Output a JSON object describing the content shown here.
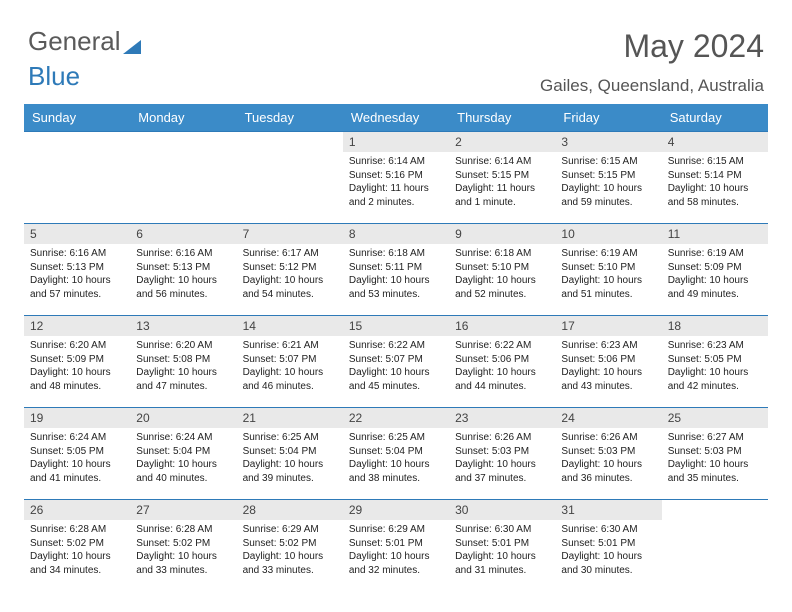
{
  "logo_text1": "General",
  "logo_text2": "Blue",
  "title": "May 2024",
  "location": "Gailes, Queensland, Australia",
  "weekdays": [
    "Sunday",
    "Monday",
    "Tuesday",
    "Wednesday",
    "Thursday",
    "Friday",
    "Saturday"
  ],
  "weeks": [
    [
      {
        "n": "",
        "sr": "",
        "ss": "",
        "dl": ""
      },
      {
        "n": "",
        "sr": "",
        "ss": "",
        "dl": ""
      },
      {
        "n": "",
        "sr": "",
        "ss": "",
        "dl": ""
      },
      {
        "n": "1",
        "sr": "Sunrise: 6:14 AM",
        "ss": "Sunset: 5:16 PM",
        "dl": "Daylight: 11 hours and 2 minutes."
      },
      {
        "n": "2",
        "sr": "Sunrise: 6:14 AM",
        "ss": "Sunset: 5:15 PM",
        "dl": "Daylight: 11 hours and 1 minute."
      },
      {
        "n": "3",
        "sr": "Sunrise: 6:15 AM",
        "ss": "Sunset: 5:15 PM",
        "dl": "Daylight: 10 hours and 59 minutes."
      },
      {
        "n": "4",
        "sr": "Sunrise: 6:15 AM",
        "ss": "Sunset: 5:14 PM",
        "dl": "Daylight: 10 hours and 58 minutes."
      }
    ],
    [
      {
        "n": "5",
        "sr": "Sunrise: 6:16 AM",
        "ss": "Sunset: 5:13 PM",
        "dl": "Daylight: 10 hours and 57 minutes."
      },
      {
        "n": "6",
        "sr": "Sunrise: 6:16 AM",
        "ss": "Sunset: 5:13 PM",
        "dl": "Daylight: 10 hours and 56 minutes."
      },
      {
        "n": "7",
        "sr": "Sunrise: 6:17 AM",
        "ss": "Sunset: 5:12 PM",
        "dl": "Daylight: 10 hours and 54 minutes."
      },
      {
        "n": "8",
        "sr": "Sunrise: 6:18 AM",
        "ss": "Sunset: 5:11 PM",
        "dl": "Daylight: 10 hours and 53 minutes."
      },
      {
        "n": "9",
        "sr": "Sunrise: 6:18 AM",
        "ss": "Sunset: 5:10 PM",
        "dl": "Daylight: 10 hours and 52 minutes."
      },
      {
        "n": "10",
        "sr": "Sunrise: 6:19 AM",
        "ss": "Sunset: 5:10 PM",
        "dl": "Daylight: 10 hours and 51 minutes."
      },
      {
        "n": "11",
        "sr": "Sunrise: 6:19 AM",
        "ss": "Sunset: 5:09 PM",
        "dl": "Daylight: 10 hours and 49 minutes."
      }
    ],
    [
      {
        "n": "12",
        "sr": "Sunrise: 6:20 AM",
        "ss": "Sunset: 5:09 PM",
        "dl": "Daylight: 10 hours and 48 minutes."
      },
      {
        "n": "13",
        "sr": "Sunrise: 6:20 AM",
        "ss": "Sunset: 5:08 PM",
        "dl": "Daylight: 10 hours and 47 minutes."
      },
      {
        "n": "14",
        "sr": "Sunrise: 6:21 AM",
        "ss": "Sunset: 5:07 PM",
        "dl": "Daylight: 10 hours and 46 minutes."
      },
      {
        "n": "15",
        "sr": "Sunrise: 6:22 AM",
        "ss": "Sunset: 5:07 PM",
        "dl": "Daylight: 10 hours and 45 minutes."
      },
      {
        "n": "16",
        "sr": "Sunrise: 6:22 AM",
        "ss": "Sunset: 5:06 PM",
        "dl": "Daylight: 10 hours and 44 minutes."
      },
      {
        "n": "17",
        "sr": "Sunrise: 6:23 AM",
        "ss": "Sunset: 5:06 PM",
        "dl": "Daylight: 10 hours and 43 minutes."
      },
      {
        "n": "18",
        "sr": "Sunrise: 6:23 AM",
        "ss": "Sunset: 5:05 PM",
        "dl": "Daylight: 10 hours and 42 minutes."
      }
    ],
    [
      {
        "n": "19",
        "sr": "Sunrise: 6:24 AM",
        "ss": "Sunset: 5:05 PM",
        "dl": "Daylight: 10 hours and 41 minutes."
      },
      {
        "n": "20",
        "sr": "Sunrise: 6:24 AM",
        "ss": "Sunset: 5:04 PM",
        "dl": "Daylight: 10 hours and 40 minutes."
      },
      {
        "n": "21",
        "sr": "Sunrise: 6:25 AM",
        "ss": "Sunset: 5:04 PM",
        "dl": "Daylight: 10 hours and 39 minutes."
      },
      {
        "n": "22",
        "sr": "Sunrise: 6:25 AM",
        "ss": "Sunset: 5:04 PM",
        "dl": "Daylight: 10 hours and 38 minutes."
      },
      {
        "n": "23",
        "sr": "Sunrise: 6:26 AM",
        "ss": "Sunset: 5:03 PM",
        "dl": "Daylight: 10 hours and 37 minutes."
      },
      {
        "n": "24",
        "sr": "Sunrise: 6:26 AM",
        "ss": "Sunset: 5:03 PM",
        "dl": "Daylight: 10 hours and 36 minutes."
      },
      {
        "n": "25",
        "sr": "Sunrise: 6:27 AM",
        "ss": "Sunset: 5:03 PM",
        "dl": "Daylight: 10 hours and 35 minutes."
      }
    ],
    [
      {
        "n": "26",
        "sr": "Sunrise: 6:28 AM",
        "ss": "Sunset: 5:02 PM",
        "dl": "Daylight: 10 hours and 34 minutes."
      },
      {
        "n": "27",
        "sr": "Sunrise: 6:28 AM",
        "ss": "Sunset: 5:02 PM",
        "dl": "Daylight: 10 hours and 33 minutes."
      },
      {
        "n": "28",
        "sr": "Sunrise: 6:29 AM",
        "ss": "Sunset: 5:02 PM",
        "dl": "Daylight: 10 hours and 33 minutes."
      },
      {
        "n": "29",
        "sr": "Sunrise: 6:29 AM",
        "ss": "Sunset: 5:01 PM",
        "dl": "Daylight: 10 hours and 32 minutes."
      },
      {
        "n": "30",
        "sr": "Sunrise: 6:30 AM",
        "ss": "Sunset: 5:01 PM",
        "dl": "Daylight: 10 hours and 31 minutes."
      },
      {
        "n": "31",
        "sr": "Sunrise: 6:30 AM",
        "ss": "Sunset: 5:01 PM",
        "dl": "Daylight: 10 hours and 30 minutes."
      },
      {
        "n": "",
        "sr": "",
        "ss": "",
        "dl": ""
      }
    ]
  ],
  "colors": {
    "header_bg": "#3b8bc8",
    "daynum_bg": "#e9e9e9",
    "rule": "#2e7ab8"
  }
}
